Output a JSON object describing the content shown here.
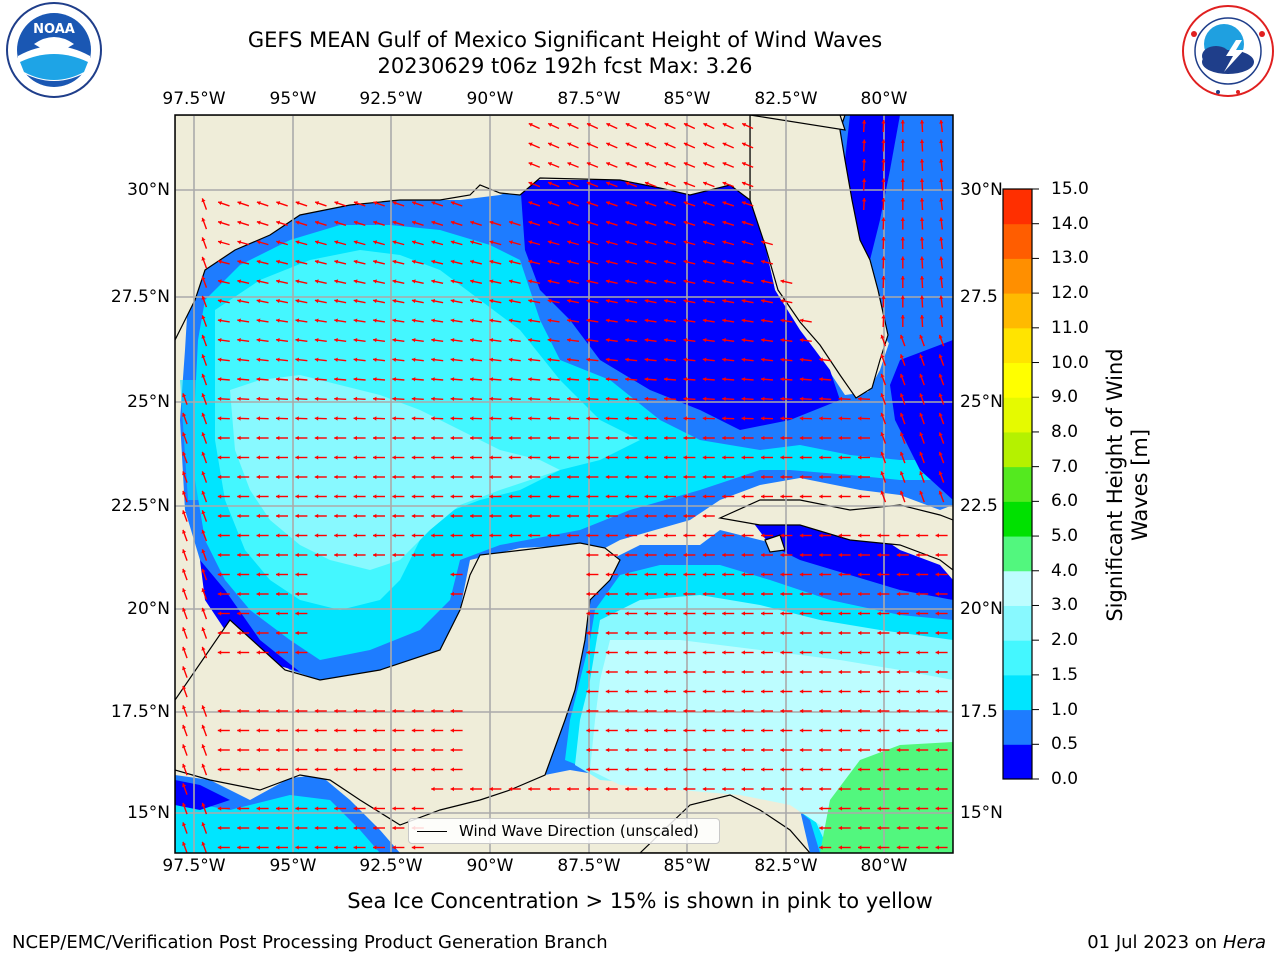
{
  "header": {
    "title_line1": "GEFS MEAN Gulf of Mexico Significant Height of Wind Waves",
    "title_line2": "20230629 t06z 192h fcst   Max: 3.26"
  },
  "logos": {
    "noara": {
      "text": "NOAA",
      "icon": "noaa-logo-icon"
    },
    "nws": {
      "icon": "nws-logo-icon"
    }
  },
  "map": {
    "lon_ticks": [
      "97.5°W",
      "95°W",
      "92.5°W",
      "90°W",
      "87.5°W",
      "85°W",
      "82.5°W",
      "80°W"
    ],
    "lat_ticks_left": [
      "30°N",
      "27.5°N",
      "25°N",
      "22.5°N",
      "20°N",
      "17.5°N",
      "15°N"
    ],
    "lat_ticks_right": [
      "30°N",
      "27.5",
      "25°N",
      "22.5",
      "20°N",
      "17.5",
      "15°N"
    ],
    "legend_label": "Wind Wave Direction (unscaled)",
    "colors": {
      "land": "#efedd9",
      "coast": "#000000",
      "grid": "#aaaaaa",
      "arrow": "#ff0000"
    }
  },
  "colorbar": {
    "label_line1": "Significant Height of Wind",
    "label_line2": "Waves [m]",
    "ticks": [
      "0.0",
      "0.5",
      "1.0",
      "1.5",
      "2.0",
      "3.0",
      "4.0",
      "5.0",
      "6.0",
      "7.0",
      "8.0",
      "9.0",
      "10.0",
      "11.0",
      "12.0",
      "13.0",
      "14.0",
      "15.0"
    ],
    "colors": [
      "#0000ff",
      "#1e7cff",
      "#00e5ff",
      "#44f7ff",
      "#88f9ff",
      "#bdfdff",
      "#52f77e",
      "#00e100",
      "#54e91f",
      "#b5f100",
      "#e5fa00",
      "#ffff00",
      "#ffe400",
      "#ffba00",
      "#ff8f00",
      "#ff5d00",
      "#ff2f00",
      "#ff0000"
    ]
  },
  "subtitle": "Sea Ice Concentration > 15% is shown in pink to yellow",
  "footer": {
    "left": "NCEP/EMC/Verification Post Processing Product Generation Branch",
    "right_prefix": "01 Jul 2023 on ",
    "right_host": "Hera"
  }
}
